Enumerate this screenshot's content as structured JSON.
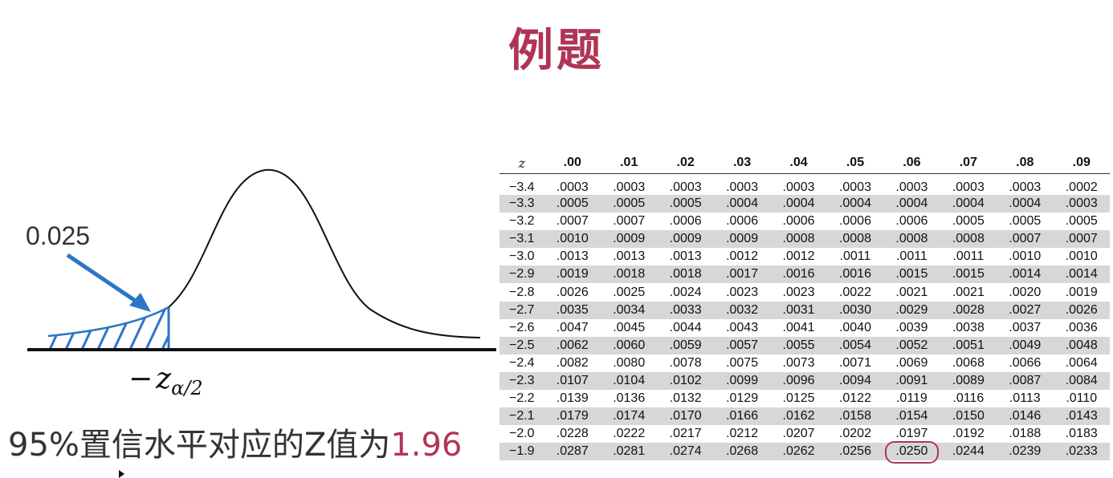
{
  "title": "例题",
  "colors": {
    "title": "#b03555",
    "accent": "#b03555",
    "arrow": "#2e75c6",
    "shade_row": "#d7d7d7"
  },
  "diagram": {
    "tail_probability": "0.025",
    "critical_symbol": "z",
    "critical_subscript": "α/2",
    "critical_minus": "−"
  },
  "conclusion": {
    "text": "95%置信水平对应的Z值为",
    "value": "1.96"
  },
  "table": {
    "headers": [
      "z",
      ".00",
      ".01",
      ".02",
      ".03",
      ".04",
      ".05",
      ".06",
      ".07",
      ".08",
      ".09"
    ],
    "rows": [
      [
        "−3.4",
        ".0003",
        ".0003",
        ".0003",
        ".0003",
        ".0003",
        ".0003",
        ".0003",
        ".0003",
        ".0003",
        ".0002"
      ],
      [
        "−3.3",
        ".0005",
        ".0005",
        ".0005",
        ".0004",
        ".0004",
        ".0004",
        ".0004",
        ".0004",
        ".0004",
        ".0003"
      ],
      [
        "−3.2",
        ".0007",
        ".0007",
        ".0006",
        ".0006",
        ".0006",
        ".0006",
        ".0006",
        ".0005",
        ".0005",
        ".0005"
      ],
      [
        "−3.1",
        ".0010",
        ".0009",
        ".0009",
        ".0009",
        ".0008",
        ".0008",
        ".0008",
        ".0008",
        ".0007",
        ".0007"
      ],
      [
        "−3.0",
        ".0013",
        ".0013",
        ".0013",
        ".0012",
        ".0012",
        ".0011",
        ".0011",
        ".0011",
        ".0010",
        ".0010"
      ],
      [
        "−2.9",
        ".0019",
        ".0018",
        ".0018",
        ".0017",
        ".0016",
        ".0016",
        ".0015",
        ".0015",
        ".0014",
        ".0014"
      ],
      [
        "−2.8",
        ".0026",
        ".0025",
        ".0024",
        ".0023",
        ".0023",
        ".0022",
        ".0021",
        ".0021",
        ".0020",
        ".0019"
      ],
      [
        "−2.7",
        ".0035",
        ".0034",
        ".0033",
        ".0032",
        ".0031",
        ".0030",
        ".0029",
        ".0028",
        ".0027",
        ".0026"
      ],
      [
        "−2.6",
        ".0047",
        ".0045",
        ".0044",
        ".0043",
        ".0041",
        ".0040",
        ".0039",
        ".0038",
        ".0037",
        ".0036"
      ],
      [
        "−2.5",
        ".0062",
        ".0060",
        ".0059",
        ".0057",
        ".0055",
        ".0054",
        ".0052",
        ".0051",
        ".0049",
        ".0048"
      ],
      [
        "−2.4",
        ".0082",
        ".0080",
        ".0078",
        ".0075",
        ".0073",
        ".0071",
        ".0069",
        ".0068",
        ".0066",
        ".0064"
      ],
      [
        "−2.3",
        ".0107",
        ".0104",
        ".0102",
        ".0099",
        ".0096",
        ".0094",
        ".0091",
        ".0089",
        ".0087",
        ".0084"
      ],
      [
        "−2.2",
        ".0139",
        ".0136",
        ".0132",
        ".0129",
        ".0125",
        ".0122",
        ".0119",
        ".0116",
        ".0113",
        ".0110"
      ],
      [
        "−2.1",
        ".0179",
        ".0174",
        ".0170",
        ".0166",
        ".0162",
        ".0158",
        ".0154",
        ".0150",
        ".0146",
        ".0143"
      ],
      [
        "−2.0",
        ".0228",
        ".0222",
        ".0217",
        ".0212",
        ".0207",
        ".0202",
        ".0197",
        ".0192",
        ".0188",
        ".0183"
      ],
      [
        "−1.9",
        ".0287",
        ".0281",
        ".0274",
        ".0268",
        ".0262",
        ".0256",
        ".0250",
        ".0244",
        ".0239",
        ".0233"
      ]
    ],
    "highlight": {
      "row": 15,
      "col": 7
    }
  }
}
